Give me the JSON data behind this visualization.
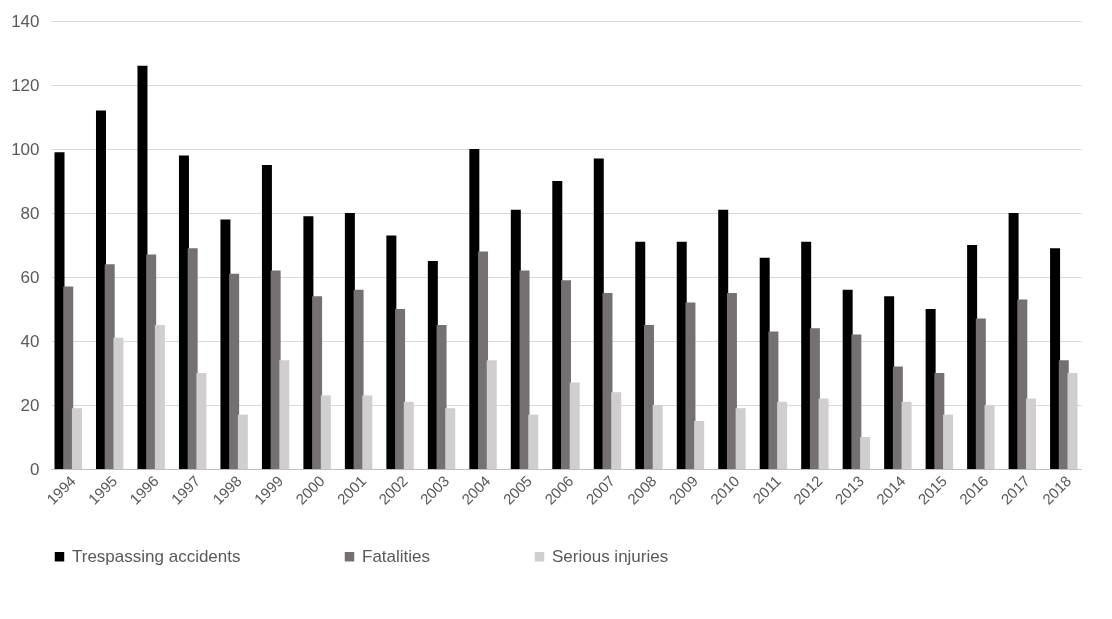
{
  "chart_data": {
    "type": "bar",
    "categories": [
      "1994",
      "1995",
      "1996",
      "1997",
      "1998",
      "1999",
      "2000",
      "2001",
      "2002",
      "2003",
      "2004",
      "2005",
      "2006",
      "2007",
      "2008",
      "2009",
      "2010",
      "2011",
      "2012",
      "2013",
      "2014",
      "2015",
      "2016",
      "2017",
      "2018"
    ],
    "series": [
      {
        "name": "Trespassing accidents",
        "color": "#000000",
        "values": [
          99,
          112,
          126,
          98,
          78,
          95,
          79,
          80,
          73,
          65,
          100,
          81,
          90,
          97,
          71,
          71,
          81,
          66,
          71,
          56,
          54,
          50,
          70,
          80,
          69
        ]
      },
      {
        "name": "Fatalities",
        "color": "#767171",
        "values": [
          57,
          64,
          67,
          69,
          61,
          62,
          54,
          56,
          50,
          45,
          68,
          62,
          59,
          55,
          45,
          52,
          55,
          43,
          44,
          42,
          32,
          30,
          47,
          53,
          34
        ]
      },
      {
        "name": "Serious injuries",
        "color": "#d0cece",
        "values": [
          19,
          41,
          45,
          30,
          17,
          34,
          23,
          23,
          21,
          19,
          34,
          17,
          27,
          24,
          20,
          15,
          19,
          21,
          22,
          10,
          21,
          17,
          20,
          22,
          30
        ]
      }
    ],
    "ylim": [
      0,
      140
    ],
    "yticks": [
      0,
      20,
      40,
      60,
      80,
      100,
      120,
      140
    ],
    "grid": "y",
    "legend": "bottom"
  }
}
